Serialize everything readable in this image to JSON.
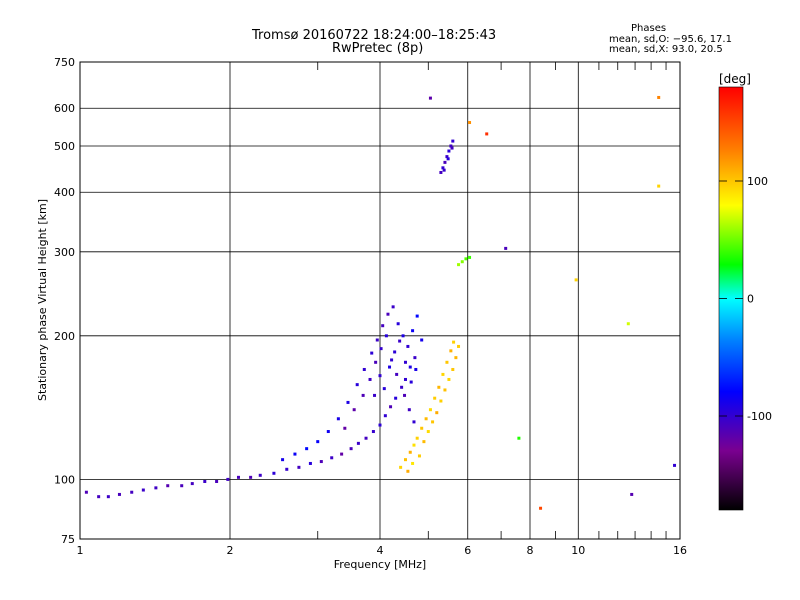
{
  "chart_data": {
    "type": "scatter",
    "title": "Tromsø 20160722 18:24:00–18:25:43",
    "subtitle": "RwPretec (8p)",
    "stats": {
      "heading": "Phases",
      "line1": "mean, sd,O: −95.6, 17.1",
      "line2": "mean, sd,X:  93.0, 20.5"
    },
    "xlabel": "Frequency [MHz]",
    "ylabel": "Stationary phase Virtual Height [km]",
    "x_scale": "log",
    "y_scale": "log",
    "xlim": [
      1,
      16
    ],
    "ylim": [
      75,
      750
    ],
    "x_ticks": [
      1,
      2,
      4,
      6,
      8,
      10,
      16
    ],
    "x_minor_ticks": [
      3,
      5,
      7,
      9,
      11,
      12,
      13,
      14,
      15
    ],
    "y_ticks": [
      75,
      100,
      200,
      300,
      400,
      500,
      600,
      750
    ],
    "grid": true,
    "colorbar": {
      "label": "[deg]",
      "range": [
        -180,
        180
      ],
      "ticks": [
        100,
        0,
        -100
      ]
    },
    "series": [
      {
        "points": [
          [
            1.03,
            94,
            -112
          ],
          [
            1.09,
            92,
            -108
          ],
          [
            1.14,
            92,
            -105
          ],
          [
            1.2,
            93,
            -110
          ],
          [
            1.27,
            94,
            -108
          ],
          [
            1.34,
            95,
            -104
          ],
          [
            1.42,
            96,
            -106
          ],
          [
            1.5,
            97,
            -115
          ],
          [
            1.6,
            97,
            -110
          ],
          [
            1.68,
            98,
            -108
          ],
          [
            1.78,
            99,
            -104
          ],
          [
            1.88,
            99,
            -110
          ],
          [
            1.98,
            100,
            -106
          ],
          [
            2.08,
            101,
            -110
          ],
          [
            2.2,
            101,
            -112
          ],
          [
            2.3,
            102,
            -105
          ],
          [
            2.45,
            103,
            -98
          ],
          [
            2.6,
            105,
            -102
          ],
          [
            2.75,
            106,
            -108
          ],
          [
            2.9,
            108,
            -96
          ],
          [
            3.05,
            109,
            -112
          ],
          [
            3.2,
            111,
            -105
          ],
          [
            3.35,
            113,
            -120
          ],
          [
            3.5,
            116,
            -110
          ],
          [
            3.62,
            119,
            -104
          ],
          [
            3.75,
            122,
            -108
          ],
          [
            3.88,
            126,
            -102
          ],
          [
            4.0,
            130,
            -98
          ],
          [
            4.1,
            136,
            -100
          ],
          [
            4.2,
            142,
            -112
          ],
          [
            4.3,
            148,
            -96
          ],
          [
            4.42,
            156,
            -104
          ],
          [
            4.5,
            162,
            -100
          ],
          [
            4.6,
            172,
            -92
          ],
          [
            4.7,
            180,
            -104
          ],
          [
            2.55,
            110,
            -88
          ],
          [
            2.7,
            113,
            -84
          ],
          [
            2.85,
            116,
            -78
          ],
          [
            3.0,
            120,
            -82
          ],
          [
            3.15,
            126,
            -86
          ],
          [
            3.3,
            134,
            -90
          ],
          [
            3.45,
            145,
            -92
          ],
          [
            3.6,
            158,
            -96
          ],
          [
            3.72,
            170,
            -100
          ],
          [
            3.85,
            184,
            -98
          ],
          [
            3.95,
            196,
            -104
          ],
          [
            4.05,
            210,
            -108
          ],
          [
            4.15,
            222,
            -110
          ],
          [
            4.25,
            230,
            -104
          ],
          [
            4.35,
            212,
            -96
          ],
          [
            4.45,
            200,
            -92
          ],
          [
            4.55,
            190,
            -100
          ],
          [
            4.65,
            205,
            -84
          ],
          [
            4.75,
            220,
            -78
          ],
          [
            4.85,
            196,
            -88
          ],
          [
            3.4,
            128,
            -120
          ],
          [
            3.55,
            140,
            -118
          ],
          [
            3.7,
            150,
            -112
          ],
          [
            3.82,
            162,
            -106
          ],
          [
            3.92,
            176,
            -110
          ],
          [
            4.02,
            188,
            -102
          ],
          [
            4.12,
            200,
            -96
          ],
          [
            4.22,
            178,
            -100
          ],
          [
            4.32,
            166,
            -108
          ],
          [
            4.48,
            150,
            -112
          ],
          [
            4.58,
            140,
            -106
          ],
          [
            4.68,
            132,
            -100
          ],
          [
            3.9,
            150,
            -104
          ],
          [
            4.0,
            165,
            -100
          ],
          [
            4.08,
            155,
            -96
          ],
          [
            4.18,
            172,
            -92
          ],
          [
            4.28,
            185,
            -98
          ],
          [
            4.38,
            195,
            -104
          ],
          [
            4.5,
            176,
            -100
          ],
          [
            4.62,
            160,
            -96
          ],
          [
            4.72,
            170,
            -90
          ]
        ]
      },
      {
        "points": [
          [
            4.4,
            106,
            95
          ],
          [
            4.5,
            110,
            102
          ],
          [
            4.6,
            114,
            108
          ],
          [
            4.68,
            118,
            90
          ],
          [
            4.75,
            122,
            96
          ],
          [
            4.85,
            128,
            100
          ],
          [
            4.95,
            134,
            104
          ],
          [
            5.05,
            140,
            92
          ],
          [
            5.15,
            148,
            98
          ],
          [
            5.25,
            156,
            106
          ],
          [
            5.35,
            166,
            94
          ],
          [
            5.45,
            176,
            100
          ],
          [
            5.55,
            186,
            108
          ],
          [
            5.62,
            194,
            96
          ],
          [
            4.55,
            104,
            110
          ],
          [
            4.65,
            108,
            88
          ],
          [
            4.8,
            112,
            98
          ],
          [
            4.9,
            120,
            104
          ],
          [
            5.0,
            126,
            92
          ],
          [
            5.1,
            132,
            100
          ],
          [
            5.2,
            138,
            110
          ],
          [
            5.3,
            146,
            96
          ],
          [
            5.4,
            154,
            102
          ],
          [
            5.5,
            162,
            94
          ],
          [
            5.6,
            170,
            100
          ],
          [
            5.68,
            180,
            106
          ],
          [
            5.75,
            190,
            98
          ]
        ]
      },
      {
        "points": [
          [
            5.3,
            440,
            -108
          ],
          [
            5.35,
            450,
            -100
          ],
          [
            5.4,
            462,
            -110
          ],
          [
            5.45,
            475,
            -104
          ],
          [
            5.5,
            488,
            -98
          ],
          [
            5.55,
            500,
            -106
          ],
          [
            5.6,
            512,
            -100
          ],
          [
            5.38,
            445,
            -102
          ],
          [
            5.48,
            470,
            -96
          ],
          [
            5.58,
            495,
            -108
          ]
        ]
      },
      {
        "points": [
          [
            5.75,
            282,
            60
          ],
          [
            5.85,
            286,
            55
          ],
          [
            5.95,
            290,
            45
          ],
          [
            6.05,
            292,
            40
          ],
          [
            5.05,
            630,
            -118
          ],
          [
            6.05,
            560,
            120
          ],
          [
            6.55,
            530,
            160
          ],
          [
            7.15,
            305,
            -110
          ],
          [
            9.9,
            262,
            95
          ],
          [
            12.6,
            212,
            70
          ],
          [
            14.5,
            632,
            125
          ],
          [
            14.5,
            412,
            95
          ],
          [
            15.6,
            107,
            -100
          ],
          [
            12.8,
            93,
            -115
          ],
          [
            8.4,
            87,
            150
          ],
          [
            7.6,
            122,
            35
          ]
        ]
      }
    ]
  }
}
